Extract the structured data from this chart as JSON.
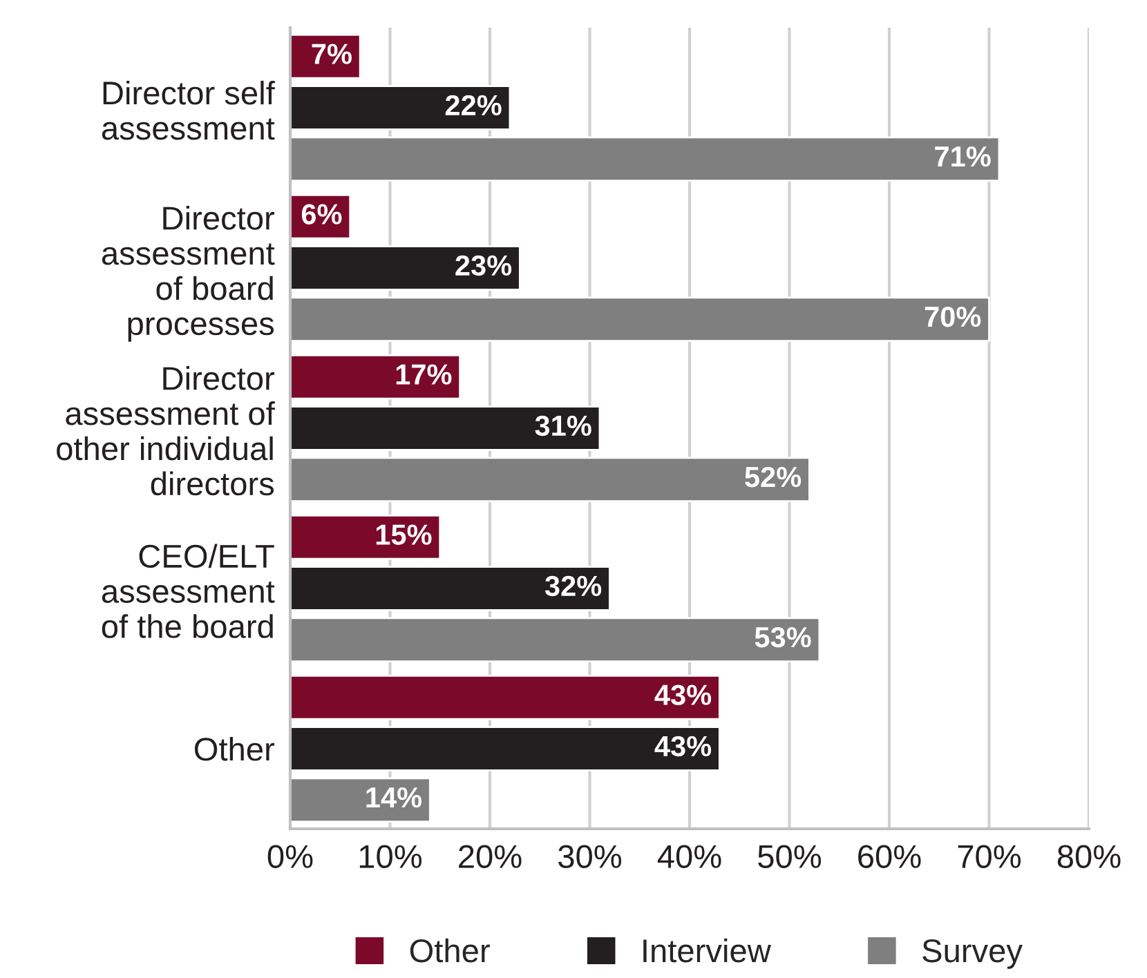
{
  "chart_data": {
    "type": "bar",
    "orientation": "horizontal",
    "categories": [
      "Director self\nassessment",
      "Director\nassessment\nof board\nprocesses",
      "Director\nassessment of\nother individual\ndirectors",
      "CEO/ELT\nassessment\nof the board",
      "Other"
    ],
    "series": [
      {
        "name": "Other",
        "color": "#7b0a2a",
        "values": [
          7,
          6,
          17,
          15,
          43
        ],
        "value_labels": [
          "7%",
          "6%",
          "17%",
          "15%",
          "43%"
        ]
      },
      {
        "name": "Interview",
        "color": "#231f20",
        "values": [
          22,
          23,
          31,
          32,
          43
        ],
        "value_labels": [
          "22%",
          "23%",
          "31%",
          "32%",
          "43%"
        ]
      },
      {
        "name": "Survey",
        "color": "#7f7f7f",
        "values": [
          71,
          70,
          52,
          53,
          14
        ],
        "value_labels": [
          "71%",
          "70%",
          "52%",
          "53%",
          "14%"
        ]
      }
    ],
    "xlim": [
      0,
      80
    ],
    "xticks": [
      {
        "value": 0,
        "label": "0%"
      },
      {
        "value": 10,
        "label": "10%"
      },
      {
        "value": 20,
        "label": "20%"
      },
      {
        "value": 30,
        "label": "30%"
      },
      {
        "value": 40,
        "label": "40%"
      },
      {
        "value": 50,
        "label": "50%"
      },
      {
        "value": 60,
        "label": "60%"
      },
      {
        "value": 70,
        "label": "70%"
      },
      {
        "value": 80,
        "label": "80%"
      }
    ],
    "grid": "x",
    "legend": "bottom"
  }
}
